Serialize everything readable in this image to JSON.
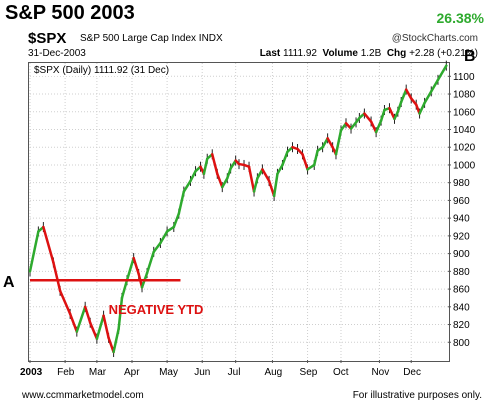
{
  "title": "S&P 500 2003",
  "gain_label": "26.38%",
  "header": {
    "symbol": "$SPX",
    "description": "S&P 500 Large Cap Index  INDX",
    "copyright": "@StockCharts.com",
    "date": "31-Dec-2003",
    "last_label": "Last",
    "last_value": "1111.92",
    "volume_label": "Volume",
    "volume_value": "1.2B",
    "chg_label": "Chg",
    "chg_value": "+2.28 (+0.21%)"
  },
  "legend": "$SPX (Daily) 1111.92 (31 Dec)",
  "markers": {
    "a": "A",
    "b": "B"
  },
  "annotation": "NEGATIVE YTD",
  "footer": {
    "website": "www.ccmmarketmodel.com",
    "disclaimer": "For illustrative purposes only."
  },
  "colors": {
    "up": "#2eaa2e",
    "down": "#dd1111",
    "reference_line": "#dd1111",
    "gain": "#2eaa2e",
    "annotation": "#dd1111"
  },
  "chart_data": {
    "type": "line",
    "ylim": [
      780,
      1115
    ],
    "yticks": [
      800,
      820,
      840,
      860,
      880,
      900,
      920,
      940,
      960,
      980,
      1000,
      1020,
      1040,
      1060,
      1080,
      1100
    ],
    "xlim": [
      0,
      250
    ],
    "xticks": [
      {
        "label": "2003",
        "day": 0
      },
      {
        "label": "Feb",
        "day": 21
      },
      {
        "label": "Mar",
        "day": 40
      },
      {
        "label": "Apr",
        "day": 61
      },
      {
        "label": "May",
        "day": 82
      },
      {
        "label": "Jun",
        "day": 103
      },
      {
        "label": "Jul",
        "day": 123
      },
      {
        "label": "Aug",
        "day": 145
      },
      {
        "label": "Sep",
        "day": 166
      },
      {
        "label": "Oct",
        "day": 186
      },
      {
        "label": "Nov",
        "day": 209
      },
      {
        "label": "Dec",
        "day": 228
      }
    ],
    "reference_level": 870,
    "reference_range": [
      0,
      90
    ],
    "series": [
      {
        "x": [
          0,
          5,
          8,
          14,
          18,
          24,
          28,
          33,
          36,
          40,
          44,
          47,
          50,
          53,
          55,
          58,
          62,
          65,
          67,
          70,
          74,
          78,
          82,
          86,
          89,
          92,
          96,
          99,
          102,
          104,
          106,
          109,
          112,
          115,
          118,
          120,
          123,
          125,
          128,
          131,
          134,
          136,
          139,
          143,
          146,
          148,
          151,
          154,
          157,
          160,
          163,
          166,
          170,
          172,
          175,
          178,
          181,
          183,
          186,
          189,
          192,
          195,
          197,
          200,
          204,
          207,
          210,
          212,
          215,
          218,
          220,
          222,
          225,
          228,
          231,
          233,
          236,
          240,
          244,
          249
        ],
        "y": [
          880,
          925,
          930,
          890,
          858,
          832,
          812,
          840,
          822,
          804,
          830,
          805,
          789,
          815,
          850,
          870,
          895,
          877,
          862,
          878,
          902,
          912,
          925,
          930,
          945,
          970,
          982,
          993,
          998,
          990,
          1007,
          1012,
          990,
          975,
          985,
          996,
          1005,
          1001,
          1000,
          998,
          970,
          985,
          995,
          982,
          965,
          990,
          1000,
          1015,
          1020,
          1018,
          1012,
          995,
          1000,
          1016,
          1020,
          1030,
          1020,
          1012,
          1039,
          1047,
          1041,
          1048,
          1053,
          1058,
          1049,
          1037,
          1050,
          1062,
          1064,
          1052,
          1060,
          1071,
          1085,
          1075,
          1068,
          1058,
          1070,
          1083,
          1096,
          1112
        ]
      }
    ]
  }
}
